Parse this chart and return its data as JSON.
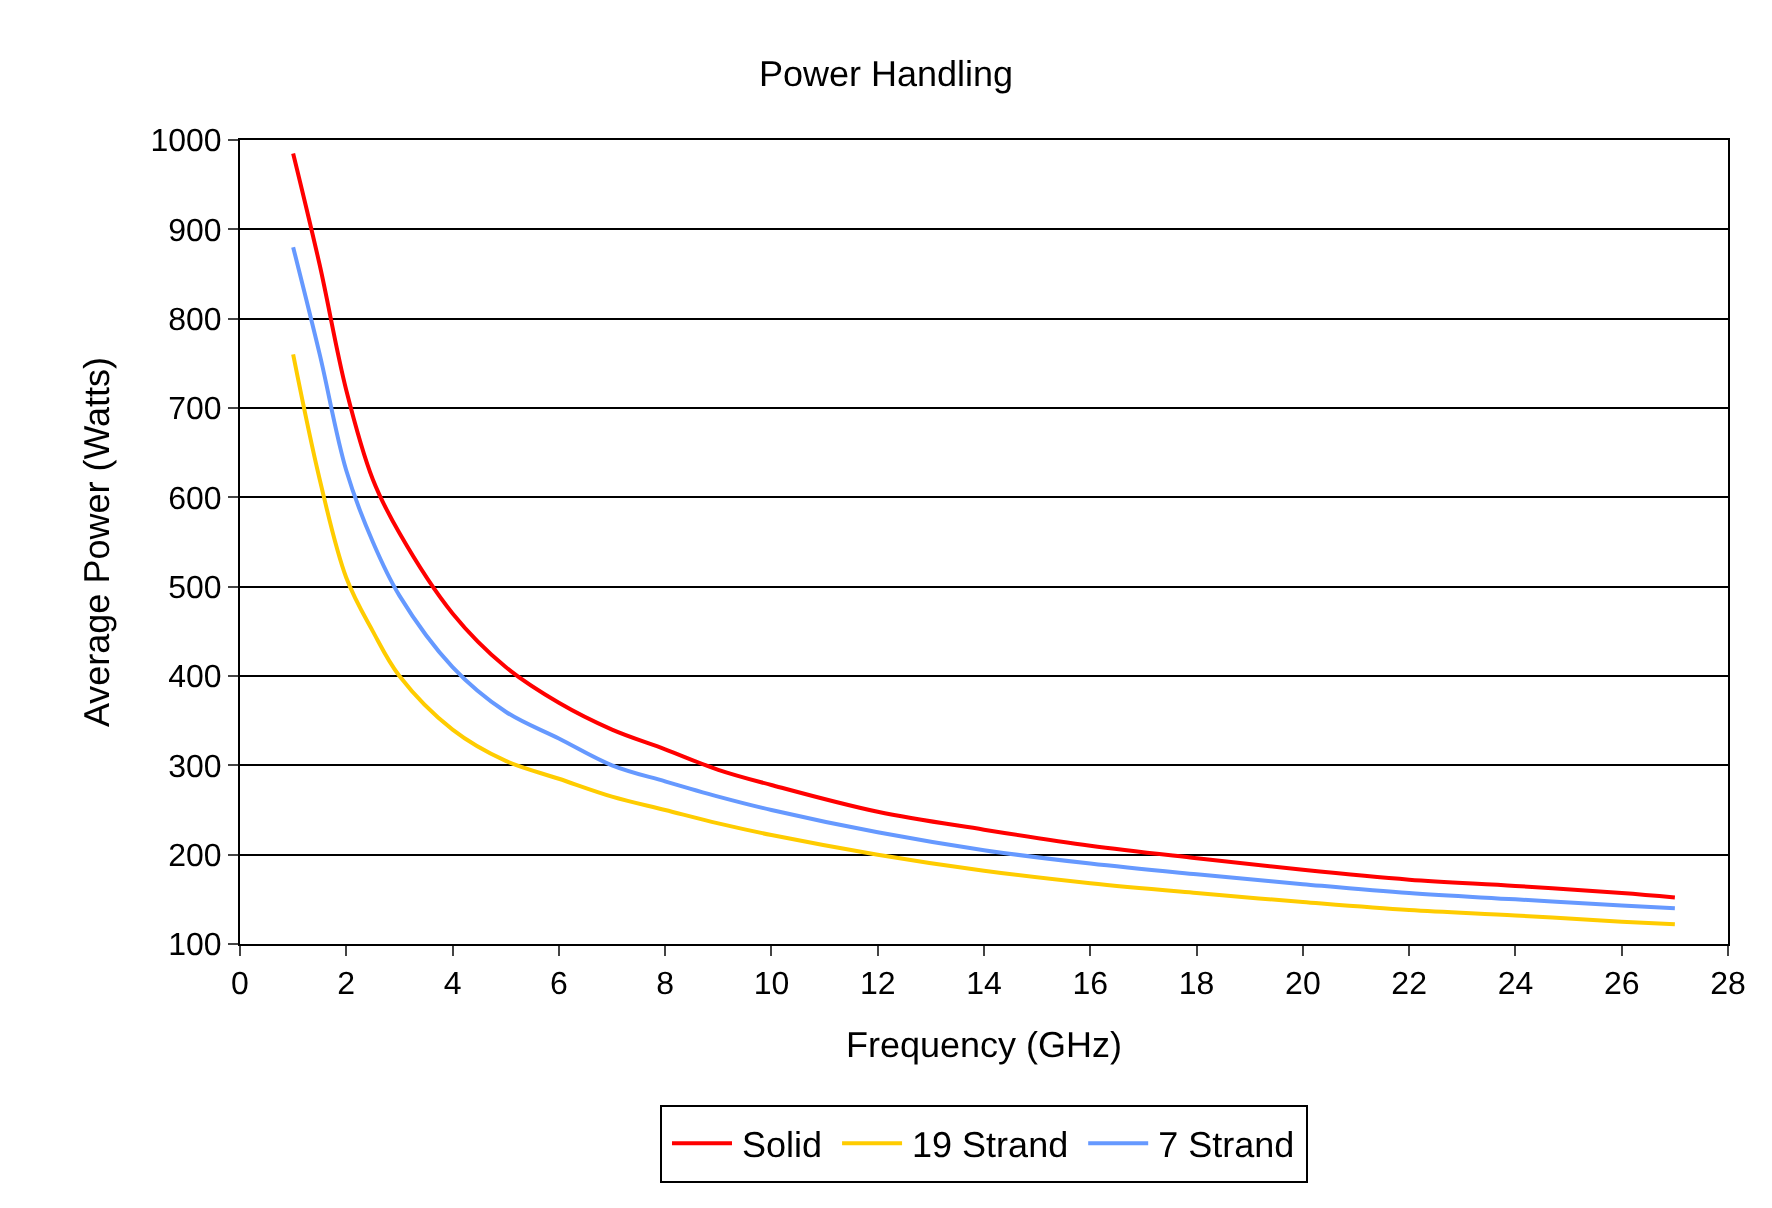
{
  "chart_data": {
    "type": "line",
    "title": "Power Handling",
    "xlabel": "Frequency (GHz)",
    "ylabel": "Average Power (Watts)",
    "x": [
      1,
      1.5,
      2,
      2.5,
      3,
      4,
      5,
      6,
      7,
      8,
      9,
      10,
      12,
      14,
      16,
      18,
      20,
      22,
      24,
      26,
      27
    ],
    "series": [
      {
        "name": "Solid",
        "color": "#ff0000",
        "values": [
          985,
          860,
          720,
          620,
          560,
          470,
          410,
          370,
          340,
          318,
          295,
          278,
          248,
          228,
          210,
          196,
          183,
          172,
          165,
          157,
          152
        ]
      },
      {
        "name": "19 Strand",
        "color": "#ffcc00",
        "values": [
          760,
          620,
          510,
          450,
          400,
          340,
          305,
          285,
          265,
          250,
          235,
          222,
          200,
          182,
          168,
          157,
          147,
          138,
          132,
          125,
          122
        ]
      },
      {
        "name": "7 Strand",
        "color": "#6699ff",
        "values": [
          880,
          760,
          630,
          550,
          490,
          410,
          360,
          330,
          300,
          282,
          265,
          250,
          225,
          205,
          190,
          178,
          167,
          157,
          150,
          143,
          140
        ]
      }
    ],
    "xlim": [
      0,
      28
    ],
    "xticks": [
      0,
      2,
      4,
      6,
      8,
      10,
      12,
      14,
      16,
      18,
      20,
      22,
      24,
      26,
      28
    ],
    "ylim": [
      100,
      1000
    ],
    "yticks": [
      100,
      200,
      300,
      400,
      500,
      600,
      700,
      800,
      900,
      1000
    ],
    "grid": "y",
    "legend": "bottom",
    "marker": "none",
    "line_style": "solid"
  }
}
